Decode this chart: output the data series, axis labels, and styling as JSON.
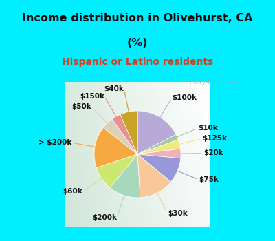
{
  "title_line1": "Income distribution in Olivehurst, CA",
  "title_line2": "(%)",
  "subtitle": "Hispanic or Latino residents",
  "title_color": "#111111",
  "subtitle_color": "#cc4422",
  "bg_cyan": "#00eeff",
  "bg_chart_color": "#d8ede0",
  "watermark": "City-Data.com",
  "labels": [
    "$100k",
    "$10k",
    "$125k",
    "$20k",
    "$75k",
    "$30k",
    "$200k",
    "$60k",
    "> $200k",
    "$50k",
    "$150k",
    "$40k"
  ],
  "values": [
    17.5,
    2.0,
    3.5,
    3.5,
    9.5,
    13.0,
    12.0,
    9.0,
    15.5,
    4.5,
    3.5,
    6.5
  ],
  "colors": [
    "#b8aad8",
    "#a8c8a0",
    "#f0e880",
    "#f0b0bc",
    "#9898d8",
    "#f8c898",
    "#a8d8bc",
    "#cce870",
    "#f8a840",
    "#ddd0b8",
    "#e89090",
    "#c8a428"
  ],
  "line_colors": [
    "#b8aad8",
    "#a8c8a0",
    "#f0e880",
    "#f0b0bc",
    "#9898d8",
    "#f8c898",
    "#a8d8bc",
    "#cce870",
    "#f8a840",
    "#ddd0b8",
    "#e89090",
    "#c8a428"
  ],
  "figsize": [
    4.0,
    3.5
  ],
  "dpi": 100,
  "title_fontsize": 11.5,
  "subtitle_fontsize": 10,
  "label_fontsize": 7.5
}
